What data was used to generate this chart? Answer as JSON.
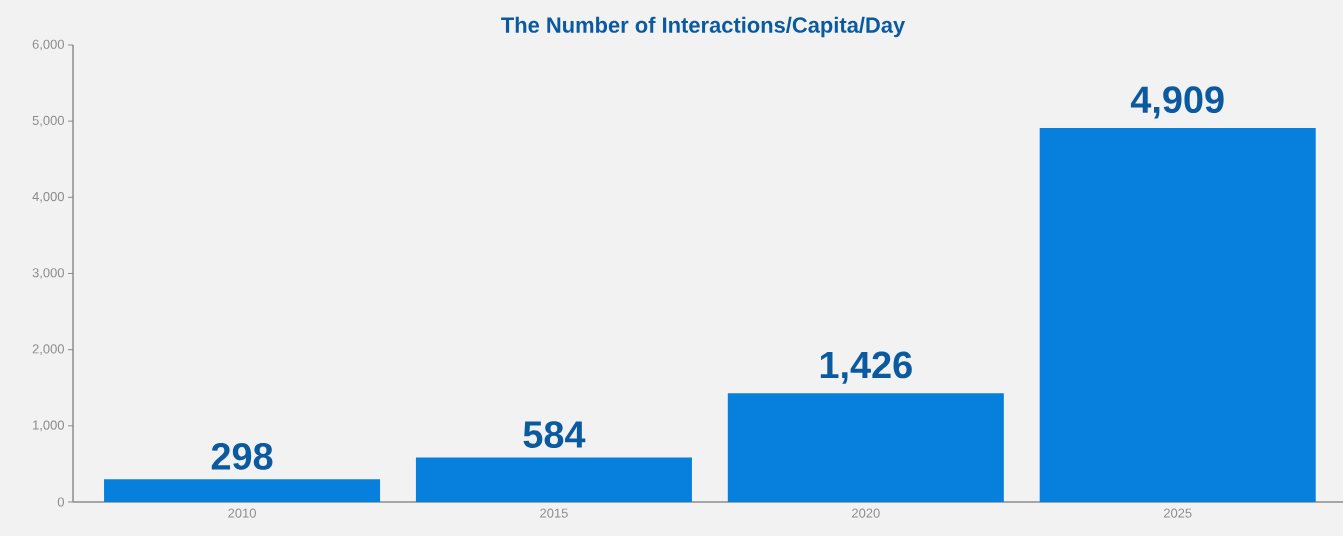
{
  "chart_data": {
    "type": "bar",
    "title": "The Number of Interactions/Capita/Day",
    "categories": [
      "2010",
      "2015",
      "2020",
      "2025"
    ],
    "values": [
      298,
      584,
      1426,
      4909
    ],
    "value_labels": [
      "298",
      "584",
      "1,426",
      "4,909"
    ],
    "color": "#077fdc",
    "ylim": [
      0,
      6000
    ],
    "yticks": [
      0,
      {
        "value": 1000,
        "label": "1,000"
      },
      {
        "value": 2000,
        "label": "2,000"
      },
      {
        "value": 3000,
        "label": "3,000"
      },
      {
        "value": 4000,
        "label": "4,000"
      },
      {
        "value": 5000,
        "label": "5,000"
      },
      {
        "value": 6000,
        "label": "6,000"
      }
    ],
    "grid": false
  }
}
